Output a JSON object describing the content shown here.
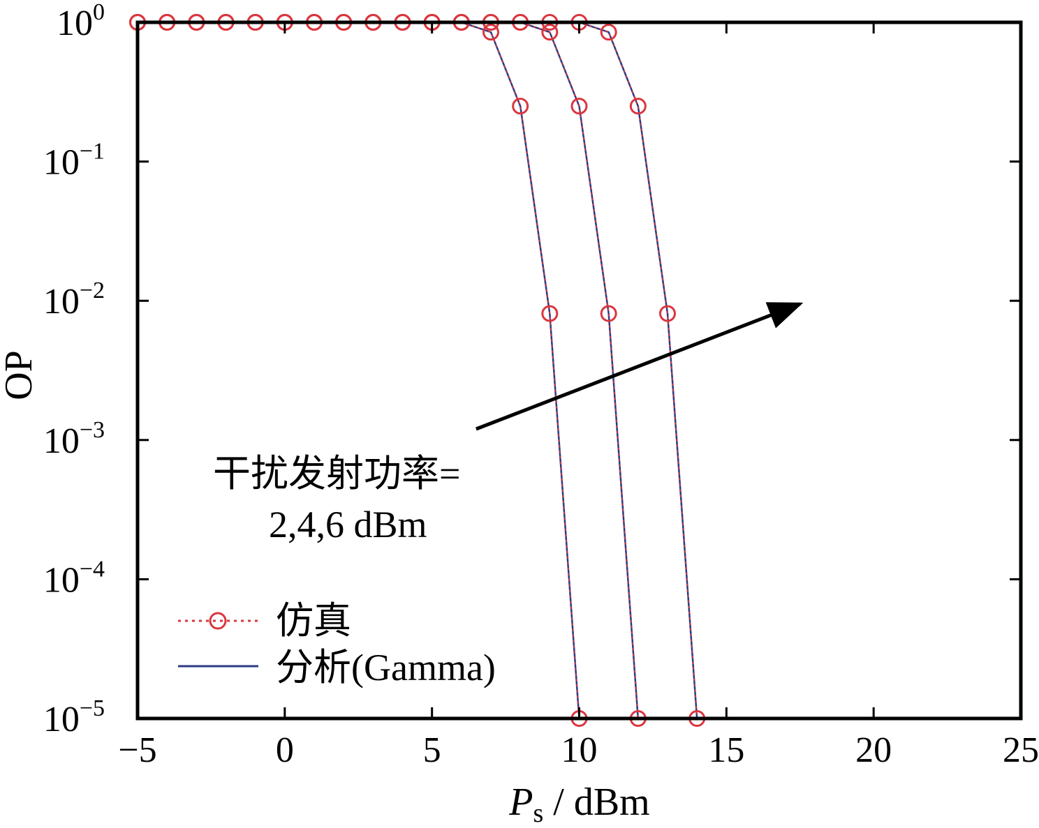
{
  "chart_data": {
    "type": "line",
    "xlabel_main": "P",
    "xlabel_sub": "s",
    "xlabel_unit": " / dBm",
    "ylabel": "OP",
    "xlim": [
      -5,
      25
    ],
    "ylim": [
      1e-05,
      1
    ],
    "yscale": "log",
    "grid": false,
    "x_ticks": [
      -5,
      0,
      5,
      10,
      15,
      20,
      25
    ],
    "x_tick_labels": [
      "−5",
      "0",
      "5",
      "10",
      "15",
      "20",
      "25"
    ],
    "y_ticks": [
      {
        "value": 1,
        "base": "10",
        "exp": "0"
      },
      {
        "value": 0.1,
        "base": "10",
        "exp": "−1"
      },
      {
        "value": 0.01,
        "base": "10",
        "exp": "−2"
      },
      {
        "value": 0.001,
        "base": "10",
        "exp": "−3"
      },
      {
        "value": 0.0001,
        "base": "10",
        "exp": "−4"
      },
      {
        "value": 1e-05,
        "base": "10",
        "exp": "−5"
      }
    ],
    "legend": {
      "position": "lower-left",
      "entries": [
        {
          "label": "仿真",
          "style": "dotted-circle",
          "color": "#d9363e"
        },
        {
          "label": "分析(Gamma)",
          "style": "solid",
          "color": "#2b3a86"
        }
      ]
    },
    "annotation": {
      "lines": [
        "干扰发射功率=",
        "2,4,6 dBm"
      ],
      "arrow": {
        "from": [
          6.5,
          0.0012
        ],
        "to": [
          17.5,
          0.0095
        ]
      }
    },
    "colors": {
      "simulation": "#d9363e",
      "analysis": "#2b3a86"
    },
    "series": [
      {
        "jam_power": "2 dBm",
        "x": [
          -5,
          -4,
          -3,
          -2,
          -1,
          0,
          1,
          2,
          3,
          4,
          5,
          6,
          7,
          8,
          9,
          10
        ],
        "y": [
          1,
          1,
          1,
          1,
          1,
          1,
          1,
          1,
          1,
          1,
          1,
          1,
          0.85,
          0.25,
          0.0081,
          1e-05
        ]
      },
      {
        "jam_power": "4 dBm",
        "x": [
          -5,
          -4,
          -3,
          -2,
          -1,
          0,
          1,
          2,
          3,
          4,
          5,
          6,
          7,
          8,
          9,
          10,
          11,
          12
        ],
        "y": [
          1,
          1,
          1,
          1,
          1,
          1,
          1,
          1,
          1,
          1,
          1,
          1,
          1,
          1,
          0.85,
          0.25,
          0.0081,
          1e-05
        ]
      },
      {
        "jam_power": "6 dBm",
        "x": [
          -5,
          -4,
          -3,
          -2,
          -1,
          0,
          1,
          2,
          3,
          4,
          5,
          6,
          7,
          8,
          9,
          10,
          11,
          12,
          13,
          14
        ],
        "y": [
          1,
          1,
          1,
          1,
          1,
          1,
          1,
          1,
          1,
          1,
          1,
          1,
          1,
          1,
          1,
          1,
          0.85,
          0.25,
          0.0081,
          1e-05
        ]
      }
    ]
  }
}
